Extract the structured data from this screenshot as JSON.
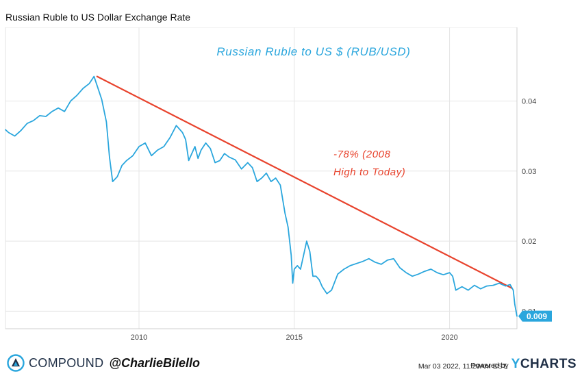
{
  "page_title": "Russian Ruble to US Dollar Exchange Rate",
  "chart_data": {
    "type": "line",
    "title": "Russian Ruble to US Dollar Exchange Rate",
    "xlabel": "",
    "ylabel": "",
    "xlim": [
      2005.7,
      2022.17
    ],
    "ylim": [
      0.0075,
      0.0505
    ],
    "x_ticks": [
      2010,
      2015,
      2020
    ],
    "x_tick_labels": [
      "2010",
      "2015",
      "2020"
    ],
    "y_ticks": [
      0.01,
      0.02,
      0.03,
      0.04
    ],
    "y_tick_labels": [
      "0.01",
      "0.02",
      "0.03",
      "0.04"
    ],
    "grid": true,
    "series": [
      {
        "name": "",
        "color": "#2aa6dd",
        "x": [
          2005.7,
          2005.8,
          2006.0,
          2006.2,
          2006.4,
          2006.6,
          2006.8,
          2007.0,
          2007.2,
          2007.4,
          2007.6,
          2007.8,
          2008.0,
          2008.2,
          2008.4,
          2008.55,
          2008.65,
          2008.8,
          2008.95,
          2009.05,
          2009.15,
          2009.3,
          2009.45,
          2009.6,
          2009.8,
          2010.0,
          2010.2,
          2010.4,
          2010.6,
          2010.8,
          2011.0,
          2011.2,
          2011.3,
          2011.4,
          2011.5,
          2011.6,
          2011.7,
          2011.8,
          2011.9,
          2012.0,
          2012.15,
          2012.3,
          2012.45,
          2012.6,
          2012.75,
          2012.9,
          2013.1,
          2013.3,
          2013.5,
          2013.65,
          2013.8,
          2013.95,
          2014.1,
          2014.25,
          2014.4,
          2014.55,
          2014.7,
          2014.8,
          2014.9,
          2014.95,
          2015.0,
          2015.1,
          2015.2,
          2015.3,
          2015.4,
          2015.5,
          2015.6,
          2015.7,
          2015.8,
          2015.9,
          2016.05,
          2016.2,
          2016.4,
          2016.6,
          2016.8,
          2017.0,
          2017.2,
          2017.4,
          2017.6,
          2017.8,
          2018.0,
          2018.2,
          2018.4,
          2018.6,
          2018.8,
          2019.0,
          2019.2,
          2019.4,
          2019.6,
          2019.8,
          2020.0,
          2020.1,
          2020.2,
          2020.4,
          2020.6,
          2020.8,
          2021.0,
          2021.2,
          2021.4,
          2021.6,
          2021.8,
          2021.95,
          2022.05,
          2022.1,
          2022.17
        ],
        "values": [
          0.0359,
          0.0355,
          0.035,
          0.0358,
          0.0368,
          0.0372,
          0.0379,
          0.0378,
          0.0385,
          0.039,
          0.0385,
          0.04,
          0.0408,
          0.0418,
          0.0425,
          0.0435,
          0.0422,
          0.0402,
          0.037,
          0.032,
          0.0285,
          0.0292,
          0.0308,
          0.0315,
          0.0322,
          0.0335,
          0.034,
          0.0322,
          0.033,
          0.0335,
          0.0348,
          0.0365,
          0.036,
          0.0355,
          0.0345,
          0.0315,
          0.0325,
          0.0335,
          0.0318,
          0.033,
          0.034,
          0.0332,
          0.0312,
          0.0315,
          0.0325,
          0.032,
          0.0316,
          0.0303,
          0.0312,
          0.0305,
          0.0285,
          0.029,
          0.0297,
          0.0285,
          0.029,
          0.028,
          0.024,
          0.022,
          0.018,
          0.014,
          0.016,
          0.0165,
          0.016,
          0.018,
          0.02,
          0.0185,
          0.015,
          0.015,
          0.0145,
          0.0135,
          0.0125,
          0.013,
          0.0153,
          0.016,
          0.0165,
          0.0168,
          0.0171,
          0.0175,
          0.017,
          0.0167,
          0.0173,
          0.0175,
          0.0162,
          0.0155,
          0.015,
          0.0153,
          0.0157,
          0.016,
          0.0155,
          0.0152,
          0.0155,
          0.015,
          0.013,
          0.0135,
          0.013,
          0.0137,
          0.0132,
          0.0136,
          0.0137,
          0.014,
          0.0136,
          0.0138,
          0.013,
          0.011,
          0.0093
        ]
      }
    ],
    "last_value_label": "0.009",
    "trend_line": {
      "color": "#e8432d",
      "from": [
        2008.65,
        0.0435
      ],
      "to": [
        2022.0,
        0.0133
      ]
    },
    "annotations": [
      {
        "text": "Russian Ruble to US $ (RUB/USD)",
        "color": "#2aa6dd"
      },
      {
        "text": "-78% (2008",
        "color": "#e8432d"
      },
      {
        "text": "High to Today)",
        "color": "#e8432d"
      }
    ]
  },
  "footer": {
    "brand_name": "COMPOUND",
    "handle": "@CharlieBilello",
    "timestamp": "Mar 03 2022, 11:29AM EST.",
    "powered_by": "Powered by",
    "ycharts_y": "Y",
    "ycharts_rest": "CHARTS"
  }
}
